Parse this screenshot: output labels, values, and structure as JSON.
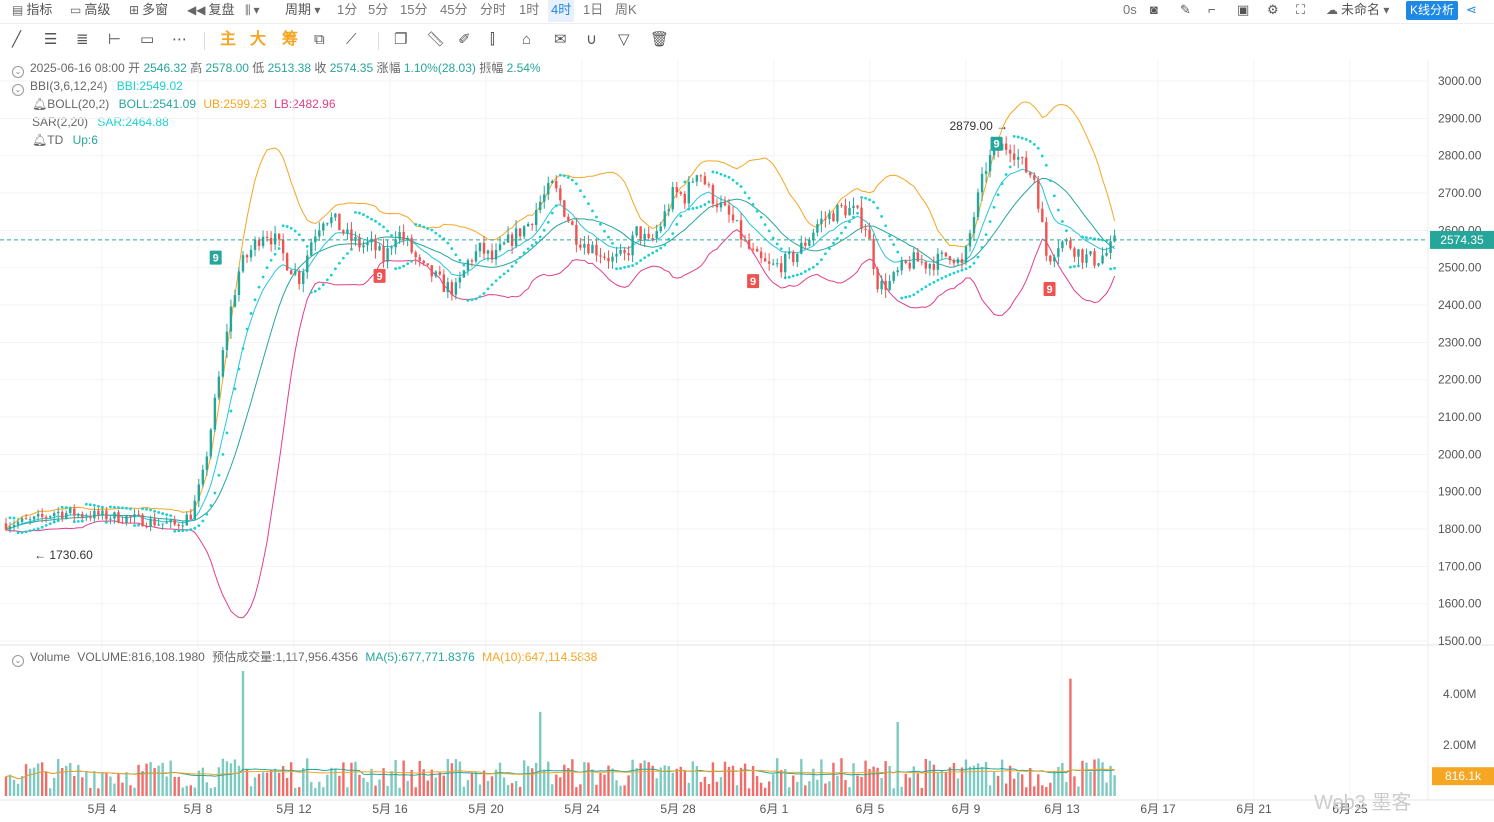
{
  "topbar": {
    "indicator_label": "指标",
    "advanced_label": "高级",
    "multi_window_label": "多窗",
    "replay_label": "复盘",
    "period_label": "周期",
    "periods": [
      "1分",
      "5分",
      "15分",
      "45分",
      "分时",
      "1时",
      "4时",
      "1日",
      "周K"
    ],
    "selected_period": "4时",
    "countdown": "0s",
    "layout_name": "未命名",
    "kline_button": "K线分析"
  },
  "toolbar": {
    "main_label": "主",
    "large_label": "大",
    "chip_label": "筹"
  },
  "info": {
    "date": "2025-06-16 08:00",
    "open_label": "开",
    "open": "2546.32",
    "high_label": "高",
    "high": "2578.00",
    "low_label": "低",
    "low": "2513.38",
    "close_label": "收",
    "close": "2574.35",
    "change_label": "涨幅",
    "change": "1.10%(28.03)",
    "amp_label": "振幅",
    "amplitude": "2.54%"
  },
  "indicators": {
    "bbi_name": "BBI(3,6,12,24)",
    "bbi_value": "BBI:2549.02",
    "boll_name": "BOLL(20,2)",
    "boll_value": "BOLL:2541.09",
    "boll_ub": "UB:2599.23",
    "boll_lb": "LB:2482.96",
    "sar_name": "SAR(2,20)",
    "sar_value": "SAR:2464.88",
    "td_name": "TD",
    "td_value": "Up:6"
  },
  "volume_info": {
    "name": "Volume",
    "value": "VOLUME:816,108.1980",
    "estimate": "预估成交量:1,117,956.4356",
    "ma5": "MA(5):677,771.8376",
    "ma10": "MA(10):647,114.5838"
  },
  "colors": {
    "up": "#26a69a",
    "down": "#ef5350",
    "boll_mid": "#26a69a",
    "boll_ub": "#f5a623",
    "boll_lb": "#e0408a",
    "sar": "#1ad1d1",
    "bbi": "#26c6da"
  },
  "watermark": "Web3 墨客",
  "chart_data": {
    "type": "candlestick",
    "price_axis": {
      "min": 1500,
      "max": 3000,
      "ticks": [
        "3000.00",
        "2900.00",
        "2800.00",
        "2700.00",
        "2600.00",
        "2500.00",
        "2400.00",
        "2300.00",
        "2200.00",
        "2100.00",
        "2000.00",
        "1900.00",
        "1800.00",
        "1700.00",
        "1600.00",
        "1500.00"
      ]
    },
    "volume_axis": {
      "min": 0,
      "max": 5000000,
      "ticks": [
        "4.00M",
        "2.00M"
      ]
    },
    "x_ticks": [
      "5月 4",
      "5月 8",
      "5月 12",
      "5月 16",
      "5月 20",
      "5月 24",
      "5月 28",
      "6月 1",
      "6月 5",
      "6月 9",
      "6月 13",
      "6月 17",
      "6月 21",
      "6月 25"
    ],
    "last_price": "2574.35",
    "last_price_value": 2574.35,
    "last_volume": "816.1k",
    "last_volume_value": 816108,
    "annotations": [
      {
        "label": "2879.00",
        "value": 2879,
        "kind": "high"
      },
      {
        "label": "1730.60",
        "value": 1730.6,
        "kind": "low"
      }
    ],
    "td_marks": [
      {
        "day": 8.7,
        "price": 2527,
        "label": "9",
        "kind": "up"
      },
      {
        "day": 15.5,
        "price": 2478,
        "label": "9",
        "kind": "down"
      },
      {
        "day": 31,
        "price": 2464,
        "label": "9",
        "kind": "down"
      },
      {
        "day": 41.1,
        "price": 2832,
        "label": "9",
        "kind": "up"
      },
      {
        "day": 43.3,
        "price": 2443,
        "label": "9",
        "kind": "down"
      }
    ],
    "close_path": [
      [
        0,
        1815
      ],
      [
        1,
        1820
      ],
      [
        1.5,
        1830
      ],
      [
        2,
        1845
      ],
      [
        3,
        1840
      ],
      [
        4,
        1835
      ],
      [
        5,
        1830
      ],
      [
        6,
        1820
      ],
      [
        7,
        1810
      ],
      [
        7.7,
        1840
      ],
      [
        8.2,
        1950
      ],
      [
        8.7,
        2150
      ],
      [
        9.2,
        2350
      ],
      [
        9.7,
        2500
      ],
      [
        10.2,
        2550
      ],
      [
        10.7,
        2600
      ],
      [
        11.2,
        2570
      ],
      [
        11.7,
        2510
      ],
      [
        12.2,
        2470
      ],
      [
        12.7,
        2580
      ],
      [
        13.2,
        2640
      ],
      [
        13.7,
        2620
      ],
      [
        14.2,
        2580
      ],
      [
        14.7,
        2560
      ],
      [
        15.2,
        2560
      ],
      [
        15.7,
        2520
      ],
      [
        16.2,
        2600
      ],
      [
        16.7,
        2560
      ],
      [
        17.2,
        2500
      ],
      [
        17.7,
        2480
      ],
      [
        18.2,
        2450
      ],
      [
        18.7,
        2440
      ],
      [
        19.2,
        2520
      ],
      [
        19.7,
        2550
      ],
      [
        20.2,
        2520
      ],
      [
        20.7,
        2560
      ],
      [
        21.2,
        2590
      ],
      [
        21.7,
        2620
      ],
      [
        22.2,
        2680
      ],
      [
        22.7,
        2720
      ],
      [
        23.2,
        2650
      ],
      [
        23.7,
        2580
      ],
      [
        24.2,
        2560
      ],
      [
        24.7,
        2540
      ],
      [
        25.2,
        2520
      ],
      [
        25.7,
        2530
      ],
      [
        26.2,
        2600
      ],
      [
        26.7,
        2560
      ],
      [
        27.2,
        2620
      ],
      [
        27.7,
        2700
      ],
      [
        28.2,
        2690
      ],
      [
        28.7,
        2770
      ],
      [
        29.2,
        2700
      ],
      [
        29.7,
        2660
      ],
      [
        30.2,
        2620
      ],
      [
        30.7,
        2560
      ],
      [
        31.2,
        2520
      ],
      [
        31.7,
        2500
      ],
      [
        32.2,
        2510
      ],
      [
        32.7,
        2530
      ],
      [
        33.2,
        2570
      ],
      [
        33.7,
        2620
      ],
      [
        34.2,
        2640
      ],
      [
        34.7,
        2660
      ],
      [
        35.2,
        2650
      ],
      [
        35.7,
        2610
      ],
      [
        36.2,
        2450
      ],
      [
        36.7,
        2460
      ],
      [
        37.2,
        2500
      ],
      [
        37.7,
        2520
      ],
      [
        38.2,
        2510
      ],
      [
        38.7,
        2520
      ],
      [
        39.2,
        2540
      ],
      [
        39.7,
        2500
      ],
      [
        40.2,
        2650
      ],
      [
        40.7,
        2780
      ],
      [
        41.2,
        2820
      ],
      [
        41.7,
        2830
      ],
      [
        42.2,
        2770
      ],
      [
        42.7,
        2740
      ],
      [
        43.2,
        2520
      ],
      [
        43.7,
        2570
      ],
      [
        44.2,
        2560
      ],
      [
        44.7,
        2530
      ],
      [
        45.2,
        2520
      ],
      [
        45.7,
        2540
      ],
      [
        46.1,
        2574.35
      ]
    ],
    "volume_spikes": [
      {
        "day": 9.9,
        "value": 4900000
      },
      {
        "day": 22.1,
        "value": 3300000
      },
      {
        "day": 37,
        "value": 2900000
      },
      {
        "day": 44.2,
        "value": 4600000
      }
    ]
  }
}
